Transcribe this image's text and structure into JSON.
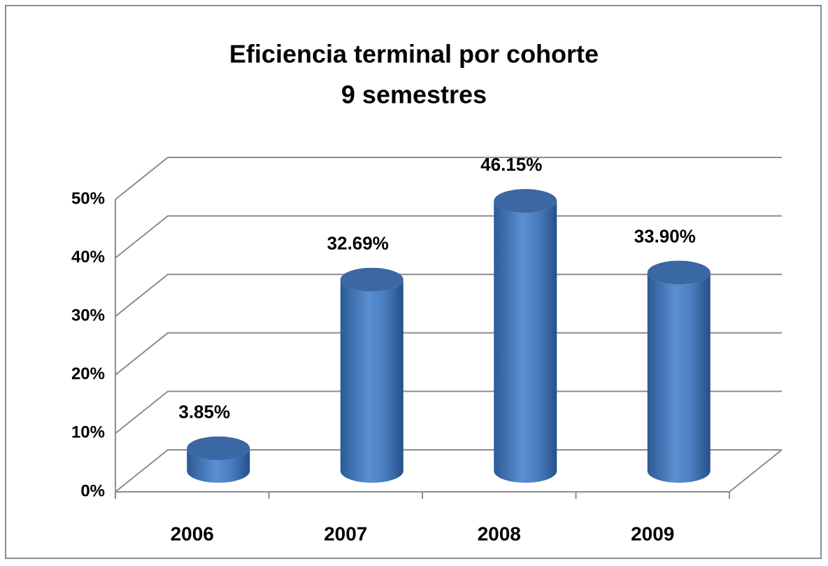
{
  "chart_data": {
    "type": "bar3d",
    "title": "Eficiencia terminal por cohorte",
    "subtitle": "9 semestres",
    "categories": [
      "2006",
      "2007",
      "2008",
      "2009"
    ],
    "values": [
      3.85,
      32.69,
      46.15,
      33.9
    ],
    "value_labels": [
      "3.85%",
      "32.69%",
      "46.15%",
      "33.90%"
    ],
    "color": "#4f81bd",
    "ylim": [
      0,
      50
    ],
    "yticks": [
      {
        "value": 0,
        "label": "0%"
      },
      {
        "value": 10,
        "label": "10%"
      },
      {
        "value": 20,
        "label": "20%"
      },
      {
        "value": 30,
        "label": "30%"
      },
      {
        "value": 40,
        "label": "40%"
      },
      {
        "value": 50,
        "label": "50%"
      }
    ],
    "grid": true
  }
}
